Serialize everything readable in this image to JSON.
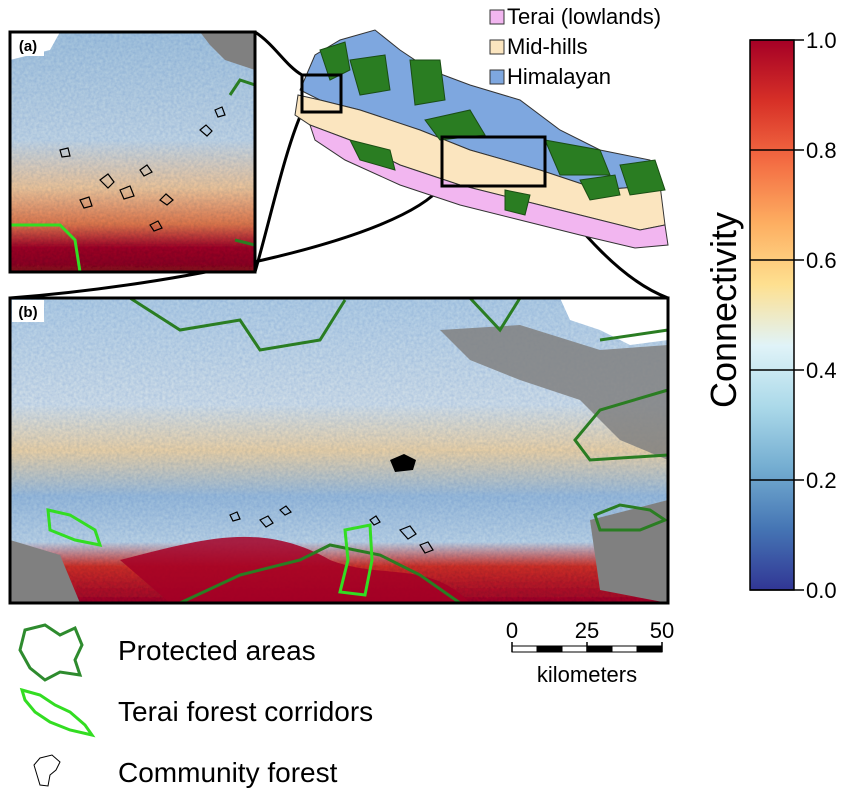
{
  "panels": {
    "a": "(a)",
    "b": "(b)"
  },
  "regions": [
    {
      "name": "Terai (lowlands)",
      "color": "#f2b6f0"
    },
    {
      "name": "Mid-hills",
      "color": "#fbe5bf"
    },
    {
      "name": "Himalayan",
      "color": "#7ea7df"
    }
  ],
  "colorbar": {
    "title": "Connectivity",
    "lim": [
      0,
      1
    ],
    "ticks": [
      {
        "value": 0,
        "label": "0.0"
      },
      {
        "value": 0.2,
        "label": "0.2"
      },
      {
        "value": 0.4,
        "label": "0.4"
      },
      {
        "value": 0.6,
        "label": "0.6"
      },
      {
        "value": 0.8,
        "label": "0.8"
      },
      {
        "value": 1,
        "label": "1.0"
      }
    ],
    "colors": [
      "#313695",
      "#4575b4",
      "#74add1",
      "#abd9e9",
      "#e0f3f8",
      "#fee090",
      "#fdae61",
      "#f46d43",
      "#d73027",
      "#a50026"
    ]
  },
  "scale_bar": {
    "ticks": [
      0,
      25,
      50
    ],
    "unit": "kilometers"
  },
  "legend": [
    {
      "label": "Protected areas",
      "color": "#2e8b2e"
    },
    {
      "label": "Terai forest corridors",
      "color": "#33dd22"
    },
    {
      "label": "Community forest",
      "color": "#000000"
    }
  ]
}
